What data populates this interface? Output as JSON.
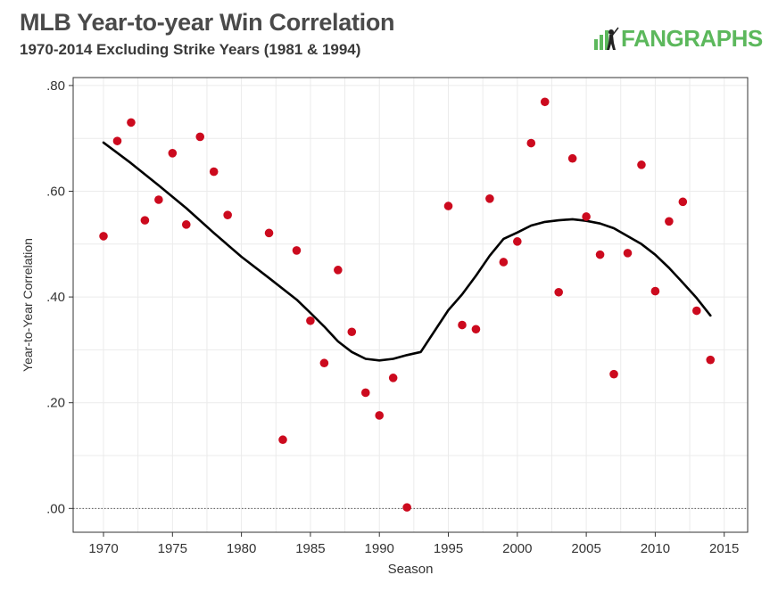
{
  "header": {
    "title": "MLB Year-to-year Win Correlation",
    "subtitle": "1970-2014 Excluding Strike Years (1981 & 1994)",
    "logo_text": "FANGRAPHS"
  },
  "colors": {
    "point": "#cc0a1e",
    "trend": "#000000",
    "grid": "#ebebeb",
    "brand": "#5cb85c"
  },
  "chart_data": {
    "type": "scatter",
    "title": "MLB Year-to-year Win Correlation",
    "subtitle": "1970-2014 Excluding Strike Years (1981 & 1994)",
    "xlabel": "Season",
    "ylabel": "Year-to-Year Correlation",
    "xlim": [
      1967.8,
      2016.7
    ],
    "ylim": [
      -0.045,
      0.815
    ],
    "x_ticks": [
      1970,
      1975,
      1980,
      1985,
      1990,
      1995,
      2000,
      2005,
      2010,
      2015
    ],
    "y_ticks": [
      0.0,
      0.2,
      0.4,
      0.6,
      0.8
    ],
    "y_tick_labels": [
      ".00",
      ".20",
      ".40",
      ".60",
      ".80"
    ],
    "grid": true,
    "reference_line": {
      "y": 0.0,
      "style": "dotted"
    },
    "series": [
      {
        "kind": "points",
        "x": [
          1970,
          1971,
          1972,
          1973,
          1974,
          1975,
          1976,
          1977,
          1978,
          1979,
          1982,
          1983,
          1984,
          1985,
          1986,
          1987,
          1988,
          1989,
          1990,
          1991,
          1992,
          1995,
          1996,
          1997,
          1998,
          1999,
          2000,
          2001,
          2002,
          2003,
          2004,
          2005,
          2006,
          2007,
          2008,
          2009,
          2010,
          2011,
          2012,
          2013,
          2014
        ],
        "y": [
          0.515,
          0.695,
          0.73,
          0.545,
          0.584,
          0.672,
          0.537,
          0.703,
          0.637,
          0.555,
          0.521,
          0.13,
          0.488,
          0.355,
          0.275,
          0.451,
          0.334,
          0.219,
          0.176,
          0.247,
          0.002,
          0.572,
          0.347,
          0.339,
          0.586,
          0.466,
          0.505,
          0.691,
          0.769,
          0.409,
          0.662,
          0.552,
          0.48,
          0.254,
          0.483,
          0.65,
          0.411,
          0.543,
          0.58,
          0.374,
          0.281
        ]
      },
      {
        "kind": "trend",
        "x": [
          1970,
          1972,
          1974,
          1976,
          1978,
          1980,
          1982,
          1984,
          1985,
          1986,
          1987,
          1988,
          1989,
          1990,
          1991,
          1992,
          1993,
          1995,
          1996,
          1997,
          1998,
          1999,
          2000,
          2001,
          2002,
          2003,
          2004,
          2005,
          2006,
          2007,
          2008,
          2009,
          2010,
          2011,
          2012,
          2013,
          2014
        ],
        "y": [
          0.692,
          0.653,
          0.611,
          0.568,
          0.521,
          0.476,
          0.436,
          0.395,
          0.37,
          0.344,
          0.316,
          0.296,
          0.283,
          0.28,
          0.283,
          0.29,
          0.296,
          0.375,
          0.405,
          0.44,
          0.478,
          0.51,
          0.522,
          0.535,
          0.542,
          0.545,
          0.547,
          0.544,
          0.539,
          0.53,
          0.515,
          0.5,
          0.48,
          0.455,
          0.427,
          0.398,
          0.365
        ]
      }
    ]
  }
}
